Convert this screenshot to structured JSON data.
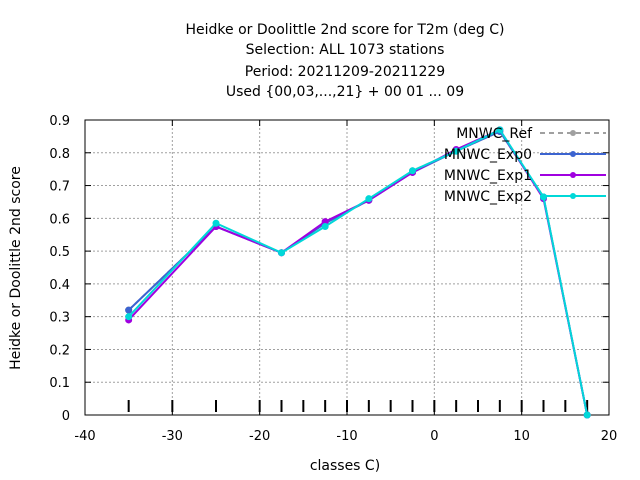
{
  "chart_data": {
    "type": "line",
    "title_lines": [
      "Heidke or Doolittle 2nd score  for T2m (deg C)",
      "Selection: ALL    1073 stations",
      "Period: 20211209-20211229",
      "Used {00,03,...,21} + 00 01 ... 09"
    ],
    "xlabel": "classes C)",
    "ylabel": "Heidke or Doolittle 2nd score",
    "xlim": [
      -40,
      20
    ],
    "ylim": [
      0,
      0.9
    ],
    "xticks": [
      -40,
      -30,
      -20,
      -10,
      0,
      10,
      20
    ],
    "yticks": [
      0,
      0.1,
      0.2,
      0.3,
      0.4,
      0.5,
      0.6,
      0.7,
      0.8,
      0.9
    ],
    "xtick_labels": [
      "-40",
      "-30",
      "-20",
      "-10",
      "0",
      "10",
      "20"
    ],
    "ytick_labels": [
      "0",
      "0.1",
      "0.2",
      "0.3",
      "0.4",
      "0.5",
      "0.6",
      "0.7",
      "0.8",
      "0.9"
    ],
    "grid": true,
    "legend_position": "top-right",
    "class_markers_x": [
      -35,
      -30,
      -25,
      -20,
      -17.5,
      -15,
      -12.5,
      -10,
      -7.5,
      -5,
      -2.5,
      0,
      2.5,
      5,
      7.5,
      10,
      12.5,
      15,
      17.5
    ],
    "x": [
      -35,
      -25,
      -17.5,
      -12.5,
      -7.5,
      -2.5,
      2.5,
      7.5,
      12.5,
      17.5
    ],
    "series": [
      {
        "name": "MNWC_Ref",
        "color": "#a0a0a0",
        "dashed": true,
        "values": [
          0.32,
          0.575,
          0.495,
          0.585,
          0.655,
          0.745,
          0.805,
          0.865,
          0.665,
          0.0
        ]
      },
      {
        "name": "MNWC_Exp0",
        "color": "#3c64d0",
        "dashed": false,
        "values": [
          0.32,
          0.575,
          0.495,
          0.585,
          0.655,
          0.74,
          0.805,
          0.865,
          0.665,
          0.0
        ]
      },
      {
        "name": "MNWC_Exp1",
        "color": "#a000e0",
        "dashed": false,
        "values": [
          0.29,
          0.575,
          0.495,
          0.59,
          0.655,
          0.74,
          0.81,
          0.87,
          0.66,
          0.0
        ]
      },
      {
        "name": "MNWC_Exp2",
        "color": "#00d8d8",
        "dashed": false,
        "values": [
          0.3,
          0.585,
          0.495,
          0.575,
          0.66,
          0.745,
          0.805,
          0.87,
          0.665,
          0.0
        ]
      }
    ]
  }
}
